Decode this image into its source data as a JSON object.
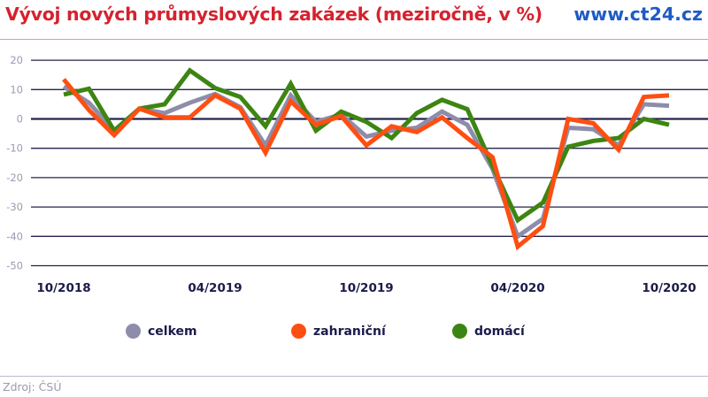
{
  "header": {
    "title": "Vývoj nových průmyslových zakázek (meziročně, v %)",
    "brand": "www.ct24.cz"
  },
  "colors": {
    "title": "#d5222e",
    "brand": "#1e5bc6",
    "celkem": "#8d8dab",
    "zahranicni": "#ff4e12",
    "domaci": "#3d8512",
    "gridline": "#23234f",
    "axis_label": "#1b1b4a"
  },
  "legend": {
    "items": [
      {
        "label": "celkem",
        "color": "#8d8dab"
      },
      {
        "label": "zahraniční",
        "color": "#ff4e12"
      },
      {
        "label": "domácí",
        "color": "#3d8512"
      }
    ]
  },
  "footer": {
    "source": "Zdroj: ČSÚ"
  },
  "chart_data": {
    "type": "line",
    "title": "Vývoj nových průmyslových zakázek (meziročně, v %)",
    "xlabel": "",
    "ylabel": "",
    "ylim": [
      -50,
      20
    ],
    "yticks": [
      20,
      10,
      0,
      -10,
      -20,
      -30,
      -40,
      -50
    ],
    "grid": true,
    "legend_position": "bottom",
    "x": [
      "10/2018",
      "11/2018",
      "12/2018",
      "01/2019",
      "02/2019",
      "03/2019",
      "04/2019",
      "05/2019",
      "06/2019",
      "07/2019",
      "08/2019",
      "09/2019",
      "10/2019",
      "11/2019",
      "12/2019",
      "01/2020",
      "02/2020",
      "03/2020",
      "04/2020",
      "05/2020",
      "06/2020",
      "07/2020",
      "08/2020",
      "09/2020",
      "10/2020"
    ],
    "x_tick_labels": [
      {
        "index": 0,
        "label": "10/2018"
      },
      {
        "index": 6,
        "label": "04/2019"
      },
      {
        "index": 12,
        "label": "10/2019"
      },
      {
        "index": 18,
        "label": "04/2020"
      },
      {
        "index": 24,
        "label": "10/2020"
      }
    ],
    "series": [
      {
        "name": "celkem",
        "color": "#8d8dab",
        "values": [
          11,
          5.5,
          -4,
          3.5,
          2,
          5.5,
          8.5,
          4,
          -9,
          8,
          -1,
          1.5,
          -6,
          -4,
          -3,
          2.5,
          -2,
          -17,
          -40,
          -34,
          -3,
          -3.5,
          -9,
          5,
          4.5
        ]
      },
      {
        "name": "zahraniční",
        "color": "#ff4e12",
        "values": [
          13.5,
          3,
          -5.5,
          3.5,
          0.5,
          0.5,
          8,
          3.5,
          -11.5,
          6,
          -2,
          1,
          -9,
          -2.5,
          -4.5,
          0.5,
          -6.5,
          -13,
          -43.5,
          -36.5,
          0,
          -1.5,
          -10.5,
          7.5,
          8
        ]
      },
      {
        "name": "domácí",
        "color": "#3d8512",
        "values": [
          8.3,
          10.3,
          -4,
          3.5,
          5,
          16.5,
          10.5,
          7.5,
          -2.5,
          12,
          -4,
          2.5,
          -1,
          -6.5,
          2,
          6.5,
          3.3,
          -16,
          -34.5,
          -28.5,
          -9.5,
          -7.5,
          -6.5,
          0,
          -2
        ]
      }
    ],
    "source": "Zdroj: ČSÚ"
  }
}
